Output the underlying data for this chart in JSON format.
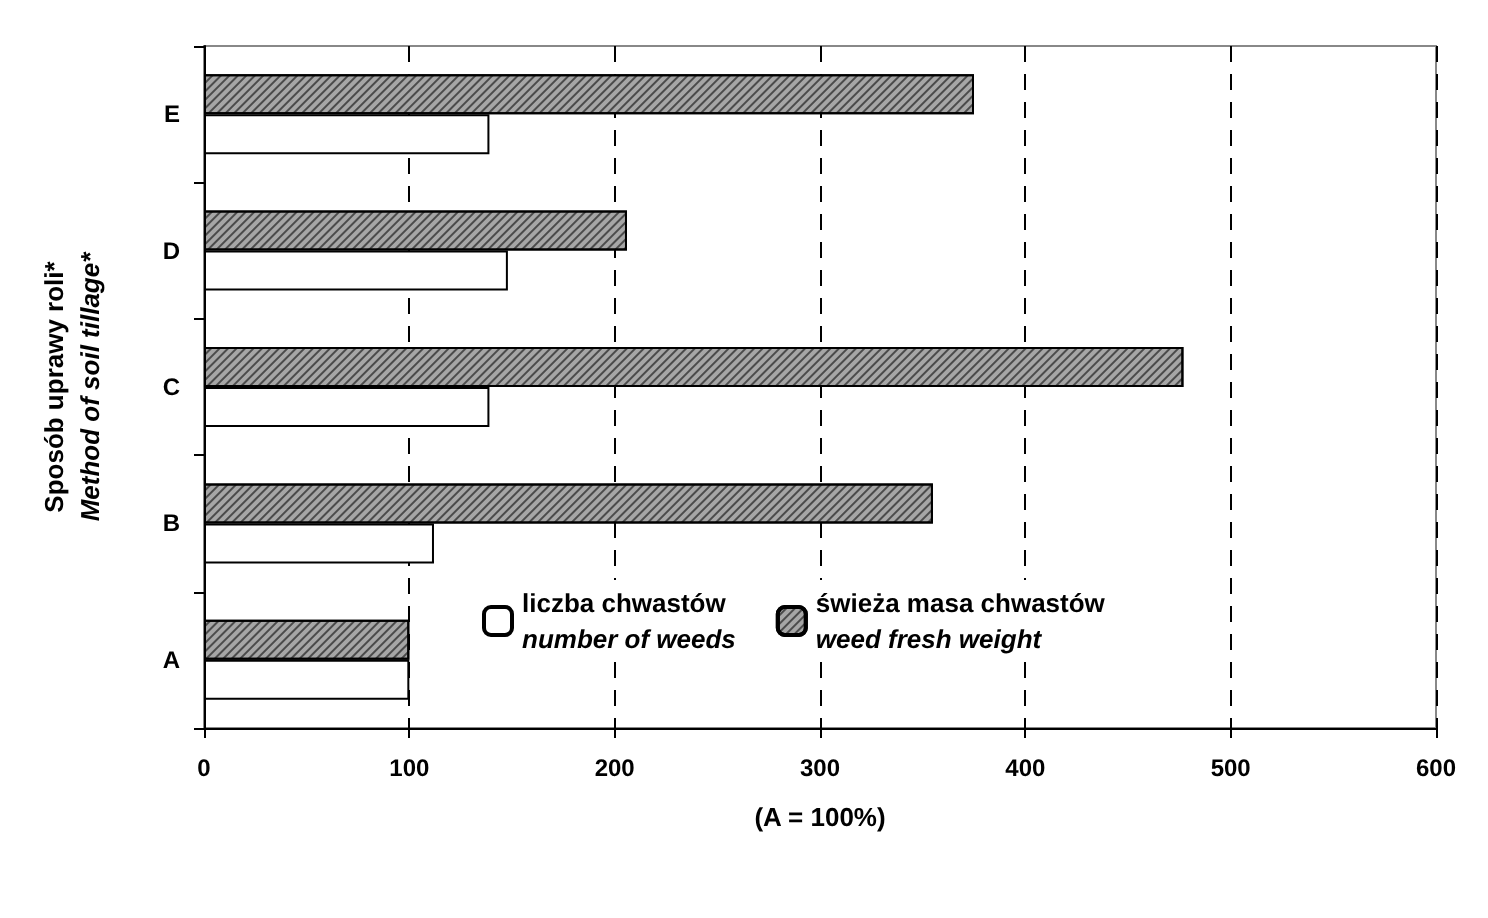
{
  "chart_data": {
    "type": "bar",
    "orientation": "horizontal",
    "xlabel": "(A = 100%)",
    "ylabel": "Sposób uprawy roli*\nMethod of soil tillage*",
    "categories": [
      "E",
      "D",
      "C",
      "B",
      "A"
    ],
    "series": [
      {
        "name": "liczba chwastów\nnumber of weeds",
        "color": "#ffffff",
        "values": [
          139,
          148,
          139,
          112,
          100
        ]
      },
      {
        "name": "świeża masa chwastów\nweed fresh weight",
        "color": "#a6a6a6",
        "values": [
          375,
          206,
          477,
          355,
          100
        ]
      }
    ],
    "xlim": [
      0,
      600
    ],
    "xticks": [
      0,
      100,
      200,
      300,
      400,
      500,
      600
    ],
    "grid": "x",
    "legend": "bottom"
  }
}
